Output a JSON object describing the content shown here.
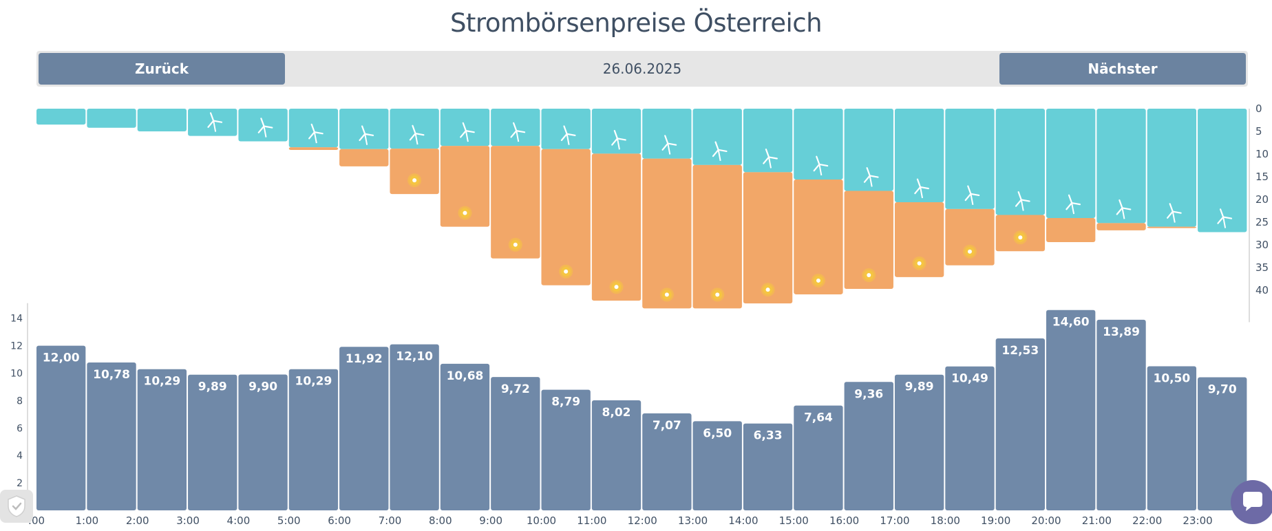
{
  "page": {
    "title": "Strombörsenpreise Österreich",
    "nav": {
      "prev_label": "Zurück",
      "date": "26.06.2025",
      "next_label": "Nächster"
    }
  },
  "colors": {
    "wind": "#66cfd7",
    "solar": "#f2a768",
    "price": "#7089a8",
    "sun_icon": "#f5c542",
    "axis": "#bbbbbb",
    "text": "#3f4f63"
  },
  "icons": {
    "wind": "wind-turbine-icon",
    "solar": "sun-icon",
    "privacy": "shield-icon",
    "chat": "chat-icon"
  },
  "chart_data": [
    {
      "type": "bar",
      "categories": [
        "0:00",
        "1:00",
        "2:00",
        "3:00",
        "4:00",
        "5:00",
        "6:00",
        "7:00",
        "8:00",
        "9:00",
        "10:00",
        "11:00",
        "12:00",
        "13:00",
        "14:00",
        "15:00",
        "16:00",
        "17:00",
        "18:00",
        "19:00",
        "20:00",
        "21:00",
        "22:00",
        "23:00"
      ],
      "stacked": true,
      "direction": "downward",
      "axis_position": "right",
      "ylim": [
        0,
        44
      ],
      "yticks": [
        0,
        5,
        10,
        15,
        20,
        25,
        30,
        35,
        40
      ],
      "series": [
        {
          "values": [
            3.5,
            4.2,
            5.0,
            6.0,
            7.2,
            8.5,
            8.9,
            8.8,
            8.2,
            8.2,
            8.9,
            9.9,
            11.0,
            12.4,
            14.0,
            15.6,
            18.1,
            20.6,
            22.1,
            23.4,
            24.1,
            25.2,
            26.0,
            27.2
          ]
        },
        {
          "values": [
            0,
            0,
            0,
            0,
            0,
            0.6,
            3.8,
            10.0,
            17.8,
            24.8,
            30.0,
            32.4,
            33.0,
            31.6,
            28.9,
            25.3,
            21.6,
            16.5,
            12.4,
            8.0,
            5.3,
            1.6,
            0.3,
            0
          ]
        }
      ]
    },
    {
      "type": "bar",
      "categories": [
        "0:00",
        "1:00",
        "2:00",
        "3:00",
        "4:00",
        "5:00",
        "6:00",
        "7:00",
        "8:00",
        "9:00",
        "10:00",
        "11:00",
        "12:00",
        "13:00",
        "14:00",
        "15:00",
        "16:00",
        "17:00",
        "18:00",
        "19:00",
        "20:00",
        "21:00",
        "22:00",
        "23:00"
      ],
      "ylim": [
        0,
        15
      ],
      "yticks": [
        2,
        4,
        6,
        8,
        10,
        12,
        14
      ],
      "values": [
        12.0,
        10.78,
        10.29,
        9.89,
        9.9,
        10.29,
        11.92,
        12.1,
        10.68,
        9.72,
        8.79,
        8.02,
        7.07,
        6.5,
        6.33,
        7.64,
        9.36,
        9.89,
        10.49,
        12.53,
        14.6,
        13.89,
        10.5,
        9.7
      ],
      "data_labels": [
        "12,00",
        "10,78",
        "10,29",
        "9,89",
        "9,90",
        "10,29",
        "11,92",
        "12,10",
        "10,68",
        "9,72",
        "8,79",
        "8,02",
        "7,07",
        "6,50",
        "6,33",
        "7,64",
        "9,36",
        "9,89",
        "10,49",
        "12,53",
        "14,60",
        "13,89",
        "10,50",
        "9,70"
      ],
      "xtick_labels": [
        ":00",
        "1:00",
        "2:00",
        "3:00",
        "4:00",
        "5:00",
        "6:00",
        "7:00",
        "8:00",
        "9:00",
        "10:00",
        "11:00",
        "12:00",
        "13:00",
        "14:00",
        "15:00",
        "16:00",
        "17:00",
        "18:00",
        "19:00",
        "20:00",
        "21:00",
        "22:00",
        "23:00"
      ]
    }
  ]
}
